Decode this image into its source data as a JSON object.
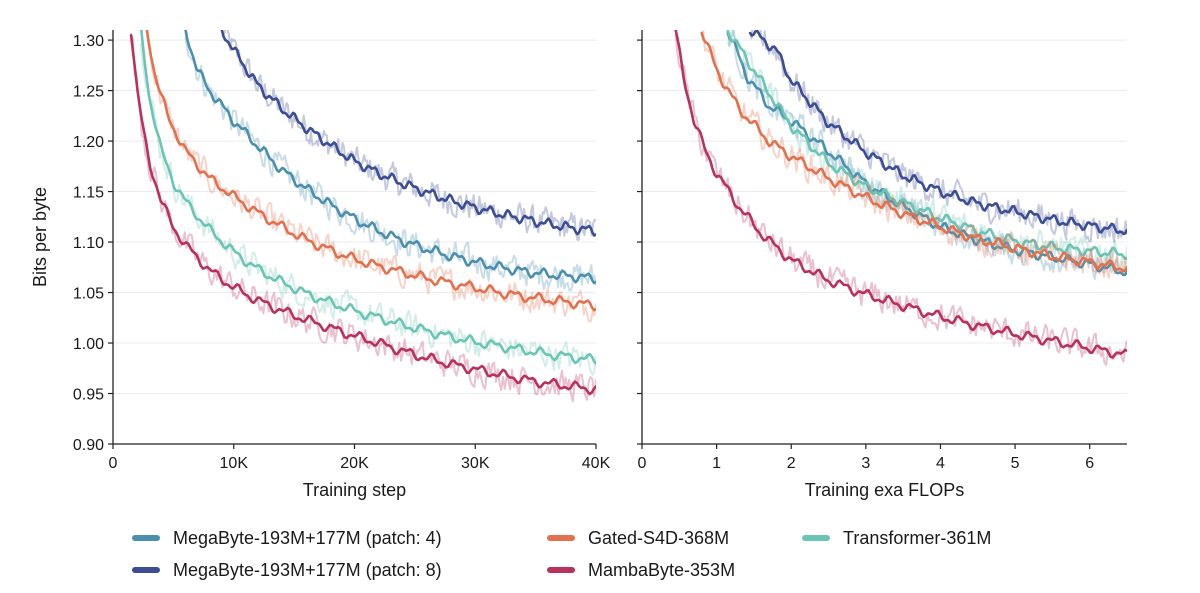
{
  "chart_data": {
    "type": "line",
    "legend_position": "bottom",
    "ylabel": "Bits per byte",
    "ylim": [
      0.9,
      1.31
    ],
    "yticks": [
      {
        "v": 0.9,
        "label": "0.90"
      },
      {
        "v": 0.95,
        "label": "0.95"
      },
      {
        "v": 1.0,
        "label": "1.00"
      },
      {
        "v": 1.05,
        "label": "1.05"
      },
      {
        "v": 1.1,
        "label": "1.10"
      },
      {
        "v": 1.15,
        "label": "1.15"
      },
      {
        "v": 1.2,
        "label": "1.20"
      },
      {
        "v": 1.25,
        "label": "1.25"
      },
      {
        "v": 1.3,
        "label": "1.30"
      }
    ],
    "legend": [
      {
        "key": "mb4",
        "label": "MegaByte-193M+177M (patch: 4)",
        "color": "#4c8fac"
      },
      {
        "key": "s4d",
        "label": "Gated-S4D-368M",
        "color": "#e3714f"
      },
      {
        "key": "tr",
        "label": "Transformer-361M",
        "color": "#6cc4b4"
      },
      {
        "key": "mb8",
        "label": "MegaByte-193M+177M (patch: 8)",
        "color": "#3c4d93"
      },
      {
        "key": "mamba",
        "label": "MambaByte-353M",
        "color": "#b8315f"
      }
    ],
    "panels": [
      {
        "xlabel": "Training step",
        "xlim": [
          0,
          40000
        ],
        "xticks": [
          {
            "v": 0,
            "label": "0"
          },
          {
            "v": 10000,
            "label": "10K"
          },
          {
            "v": 20000,
            "label": "20K"
          },
          {
            "v": 30000,
            "label": "30K"
          },
          {
            "v": 40000,
            "label": "40K"
          }
        ],
        "series": [
          {
            "key": "mb8",
            "name": "MegaByte-193M+177M (patch: 8)",
            "color": "#3c4d93",
            "x": [
              9000,
              10000,
              12000,
              14000,
              16000,
              18000,
              20000,
              22000,
              24000,
              26000,
              28000,
              30000,
              32000,
              34000,
              36000,
              38000,
              40000
            ],
            "y": [
              1.31,
              1.29,
              1.255,
              1.232,
              1.213,
              1.196,
              1.18,
              1.168,
              1.158,
              1.149,
              1.141,
              1.134,
              1.128,
              1.123,
              1.118,
              1.114,
              1.111
            ]
          },
          {
            "key": "mb4",
            "name": "MegaByte-193M+177M (patch: 4)",
            "color": "#4c8fac",
            "x": [
              6000,
              7000,
              8000,
              10000,
              12000,
              14000,
              16000,
              18000,
              20000,
              22000,
              24000,
              26000,
              28000,
              30000,
              32000,
              34000,
              36000,
              38000,
              40000
            ],
            "y": [
              1.31,
              1.27,
              1.25,
              1.22,
              1.195,
              1.171,
              1.153,
              1.137,
              1.123,
              1.111,
              1.101,
              1.093,
              1.086,
              1.08,
              1.075,
              1.071,
              1.068,
              1.066,
              1.064
            ]
          },
          {
            "key": "s4d",
            "name": "Gated-S4D-368M",
            "color": "#e3714f",
            "x": [
              2800,
              3500,
              4500,
              6000,
              8000,
              10000,
              12000,
              14000,
              16000,
              18000,
              20000,
              22000,
              24000,
              26000,
              28000,
              30000,
              32000,
              34000,
              36000,
              38000,
              40000
            ],
            "y": [
              1.31,
              1.265,
              1.225,
              1.19,
              1.163,
              1.145,
              1.129,
              1.115,
              1.102,
              1.092,
              1.083,
              1.076,
              1.07,
              1.064,
              1.059,
              1.055,
              1.05,
              1.046,
              1.043,
              1.04,
              1.037
            ]
          },
          {
            "key": "tr",
            "name": "Transformer-361M",
            "color": "#6cc4b4",
            "x": [
              2300,
              3000,
              4000,
              5000,
              6000,
              8000,
              10000,
              12000,
              14000,
              16000,
              18000,
              20000,
              22000,
              24000,
              26000,
              28000,
              30000,
              32000,
              34000,
              36000,
              38000,
              40000
            ],
            "y": [
              1.31,
              1.245,
              1.19,
              1.16,
              1.14,
              1.112,
              1.09,
              1.073,
              1.06,
              1.049,
              1.04,
              1.032,
              1.025,
              1.018,
              1.012,
              1.006,
              1.001,
              0.997,
              0.993,
              0.989,
              0.986,
              0.983
            ]
          },
          {
            "key": "mamba",
            "name": "MambaByte-353M",
            "color": "#b8315f",
            "x": [
              1500,
              2000,
              2500,
              3000,
              4000,
              5000,
              6000,
              8000,
              10000,
              12000,
              14000,
              16000,
              18000,
              20000,
              22000,
              24000,
              26000,
              28000,
              30000,
              32000,
              34000,
              36000,
              38000,
              40000
            ],
            "y": [
              1.31,
              1.25,
              1.21,
              1.18,
              1.14,
              1.115,
              1.097,
              1.072,
              1.055,
              1.042,
              1.032,
              1.023,
              1.015,
              1.007,
              1.0,
              0.992,
              0.985,
              0.979,
              0.974,
              0.969,
              0.964,
              0.96,
              0.957,
              0.954
            ]
          }
        ]
      },
      {
        "xlabel": "Training exa FLOPs",
        "xlim": [
          0,
          6.5
        ],
        "xticks": [
          {
            "v": 0,
            "label": "0"
          },
          {
            "v": 1,
            "label": "1"
          },
          {
            "v": 2,
            "label": "2"
          },
          {
            "v": 3,
            "label": "3"
          },
          {
            "v": 4,
            "label": "4"
          },
          {
            "v": 5,
            "label": "5"
          },
          {
            "v": 6,
            "label": "6"
          }
        ],
        "series": [
          {
            "key": "mb8",
            "name": "MegaByte-193M+177M (patch: 8)",
            "color": "#3c4d93",
            "x": [
              1.45,
              1.8,
              2.0,
              2.5,
              3.0,
              3.5,
              4.0,
              4.5,
              5.0,
              5.5,
              6.0,
              6.5
            ],
            "y": [
              1.31,
              1.29,
              1.26,
              1.218,
              1.189,
              1.166,
              1.15,
              1.138,
              1.13,
              1.122,
              1.116,
              1.111
            ]
          },
          {
            "key": "mb4",
            "name": "MegaByte-193M+177M (patch: 4)",
            "color": "#4c8fac",
            "x": [
              1.15,
              1.4,
              1.7,
              2.0,
              2.5,
              3.0,
              3.5,
              4.0,
              4.5,
              5.0,
              5.5,
              6.0,
              6.5
            ],
            "y": [
              1.31,
              1.265,
              1.235,
              1.22,
              1.19,
              1.158,
              1.135,
              1.115,
              1.102,
              1.092,
              1.085,
              1.078,
              1.07
            ]
          },
          {
            "key": "tr",
            "name": "Transformer-361M",
            "color": "#6cc4b4",
            "x": [
              1.15,
              1.5,
              2.0,
              2.5,
              3.0,
              3.5,
              4.0,
              4.5,
              5.0,
              5.5,
              6.0,
              6.5
            ],
            "y": [
              1.31,
              1.27,
              1.215,
              1.178,
              1.155,
              1.139,
              1.124,
              1.111,
              1.101,
              1.095,
              1.091,
              1.088
            ]
          },
          {
            "key": "s4d",
            "name": "Gated-S4D-368M",
            "color": "#e3714f",
            "x": [
              0.8,
              1.0,
              1.3,
              1.7,
              2.0,
              2.5,
              3.0,
              3.5,
              4.0,
              4.5,
              5.0,
              5.5,
              6.0,
              6.5
            ],
            "y": [
              1.31,
              1.27,
              1.232,
              1.2,
              1.185,
              1.163,
              1.144,
              1.128,
              1.115,
              1.103,
              1.094,
              1.086,
              1.08,
              1.074
            ]
          },
          {
            "key": "mamba",
            "name": "MambaByte-353M",
            "color": "#b8315f",
            "x": [
              0.45,
              0.55,
              0.7,
              0.85,
              1.0,
              1.3,
              1.6,
              2.0,
              2.5,
              3.0,
              3.5,
              4.0,
              4.5,
              5.0,
              5.5,
              6.0,
              6.5
            ],
            "y": [
              1.31,
              1.265,
              1.22,
              1.19,
              1.168,
              1.135,
              1.108,
              1.082,
              1.062,
              1.048,
              1.037,
              1.026,
              1.017,
              1.009,
              1.002,
              0.995,
              0.988
            ]
          }
        ]
      }
    ]
  }
}
